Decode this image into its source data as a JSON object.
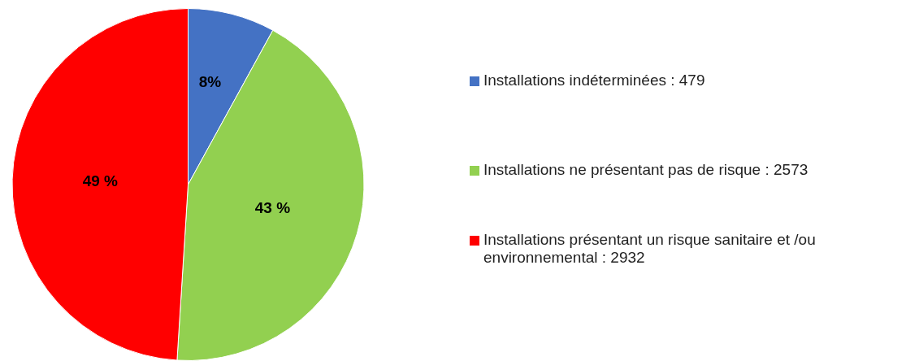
{
  "chart_data": {
    "type": "pie",
    "categories": [
      "Installations indéterminées : 479",
      "Installations ne présentant pas de risque : 2573",
      "Installations présentant un risque sanitaire et /ou environnemental : 2932"
    ],
    "values": [
      8,
      43,
      49
    ],
    "value_labels": [
      "8%",
      "43 %",
      "49 %"
    ],
    "colors": [
      "#4472c4",
      "#92d050",
      "#ff0000"
    ],
    "legend": "right"
  }
}
